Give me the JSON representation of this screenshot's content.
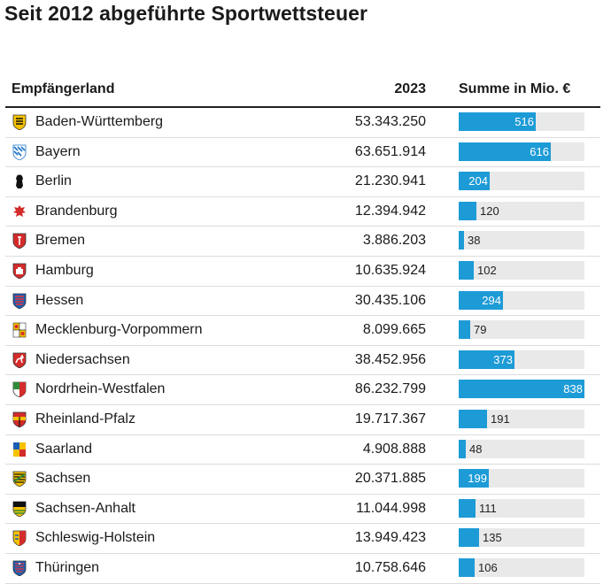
{
  "title": "Seit 2012 abgeführte Sportwettsteuer",
  "header": {
    "country": "Empfängerland",
    "year": "2023",
    "sum": "Summe in Mio. €"
  },
  "colors": {
    "bar": "#1d9bd6",
    "track": "#e9e9e9"
  },
  "chart_data": {
    "type": "table",
    "title": "Seit 2012 abgeführte Sportwettsteuer",
    "columns": [
      "Empfängerland",
      "2023",
      "Summe in Mio. €"
    ],
    "bar_max": 838,
    "rows": [
      {
        "country": "Baden-Württemberg",
        "year_2023": "53.343.250",
        "sum": 516,
        "sum_label": "516",
        "flag": "baden-wuerttemberg-coat-of-arms"
      },
      {
        "country": "Bayern",
        "year_2023": "63.651.914",
        "sum": 616,
        "sum_label": "616",
        "flag": "bayern-coat-of-arms"
      },
      {
        "country": "Berlin",
        "year_2023": "21.230.941",
        "sum": 204,
        "sum_label": "204",
        "flag": "berlin-bear"
      },
      {
        "country": "Brandenburg",
        "year_2023": "12.394.942",
        "sum": 120,
        "sum_label": "120",
        "flag": "brandenburg-eagle"
      },
      {
        "country": "Bremen",
        "year_2023": "3.886.203",
        "sum": 38,
        "sum_label": "38",
        "flag": "bremen-coat-of-arms"
      },
      {
        "country": "Hamburg",
        "year_2023": "10.635.924",
        "sum": 102,
        "sum_label": "102",
        "flag": "hamburg-castle"
      },
      {
        "country": "Hessen",
        "year_2023": "30.435.106",
        "sum": 294,
        "sum_label": "294",
        "flag": "hessen-lion"
      },
      {
        "country": "Mecklenburg-Vorpommern",
        "year_2023": "8.099.665",
        "sum": 79,
        "sum_label": "79",
        "flag": "mecklenburg-vorpommern-coat-of-arms"
      },
      {
        "country": "Niedersachsen",
        "year_2023": "38.452.956",
        "sum": 373,
        "sum_label": "373",
        "flag": "niedersachsen-horse"
      },
      {
        "country": "Nordrhein-Westfalen",
        "year_2023": "86.232.799",
        "sum": 838,
        "sum_label": "838",
        "flag": "nordrhein-westfalen-coat-of-arms"
      },
      {
        "country": "Rheinland-Pfalz",
        "year_2023": "19.717.367",
        "sum": 191,
        "sum_label": "191",
        "flag": "rheinland-pfalz-coat-of-arms"
      },
      {
        "country": "Saarland",
        "year_2023": "4.908.888",
        "sum": 48,
        "sum_label": "48",
        "flag": "saarland-coat-of-arms"
      },
      {
        "country": "Sachsen",
        "year_2023": "20.371.885",
        "sum": 199,
        "sum_label": "199",
        "flag": "sachsen-coat-of-arms"
      },
      {
        "country": "Sachsen-Anhalt",
        "year_2023": "11.044.998",
        "sum": 111,
        "sum_label": "111",
        "flag": "sachsen-anhalt-coat-of-arms"
      },
      {
        "country": "Schleswig-Holstein",
        "year_2023": "13.949.423",
        "sum": 135,
        "sum_label": "135",
        "flag": "schleswig-holstein-coat-of-arms"
      },
      {
        "country": "Thüringen",
        "year_2023": "10.758.646",
        "sum": 106,
        "sum_label": "106",
        "flag": "thueringen-lion"
      }
    ]
  }
}
